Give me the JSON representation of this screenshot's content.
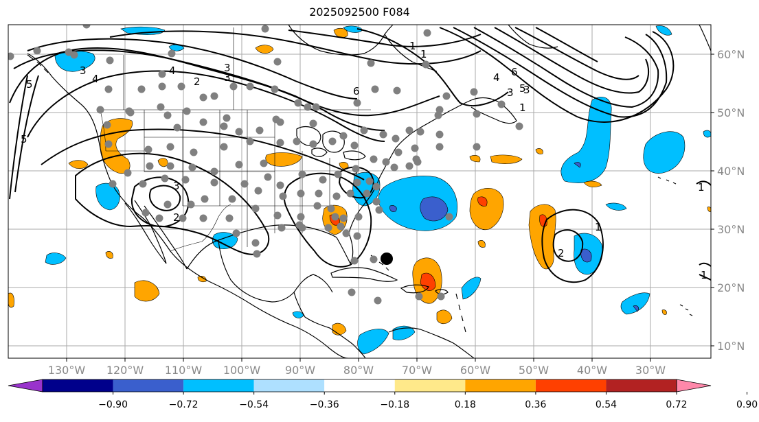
{
  "title": "2025092500 F084",
  "lat_labels": [
    "60°N",
    "50°N",
    "40°N",
    "30°N",
    "20°N",
    "10°N"
  ],
  "lon_labels": [
    "130°W",
    "120°W",
    "110°W",
    "100°W",
    "90°W",
    "80°W",
    "70°W",
    "60°W",
    "50°W",
    "40°W",
    "30°W"
  ],
  "colorbar": {
    "ticks": [
      "−0.90",
      "−0.72",
      "−0.54",
      "−0.36",
      "−0.18",
      "0.18",
      "0.36",
      "0.54",
      "0.72",
      "0.90"
    ],
    "colors": [
      "#9933cc",
      "#00008b",
      "#3a5fcd",
      "#00bfff",
      "#aee0ff",
      "#ffffff",
      "#ffe98a",
      "#ffa500",
      "#ff4000",
      "#b22222",
      "#ff88aa"
    ]
  },
  "colors": {
    "gridline": "#aaaaaa",
    "station_marker": "#808080",
    "storm_marker": "#000000",
    "contour": "#000000"
  },
  "contour_labels": [
    "5",
    "4",
    "3",
    "2",
    "3",
    "4",
    "3",
    "3",
    "6",
    "1",
    "4",
    "6",
    "3",
    "5",
    "3",
    "2",
    "1",
    "2",
    "1",
    "1",
    "1",
    "1",
    "3",
    "5"
  ]
}
